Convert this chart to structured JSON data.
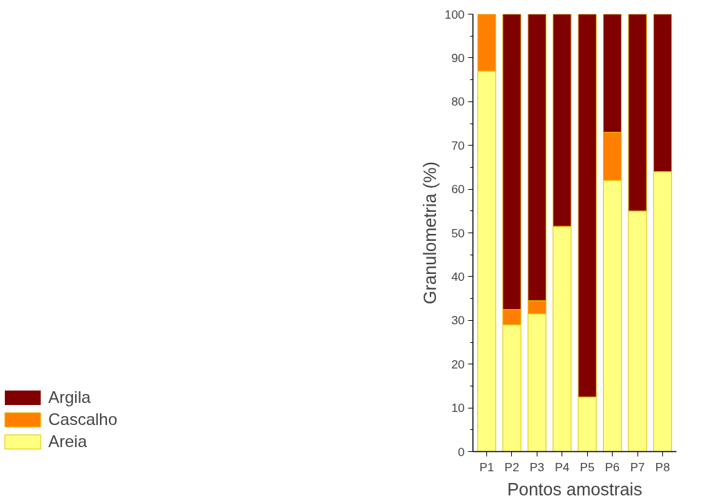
{
  "chart_data": {
    "type": "bar",
    "stacked": true,
    "xlabel": "Pontos amostrais",
    "ylabel": "Granulometria (%)",
    "categories": [
      "P1",
      "P2",
      "P3",
      "P4",
      "P5",
      "P6",
      "P7",
      "P8"
    ],
    "series": [
      {
        "name": "Areia",
        "color": "#ffff80",
        "values": [
          87,
          29,
          31.5,
          51.5,
          12.5,
          62,
          55,
          64
        ]
      },
      {
        "name": "Cascalho",
        "color": "#ff8000",
        "values": [
          13,
          3.5,
          3,
          0,
          0,
          11,
          0,
          0
        ]
      },
      {
        "name": "Argila",
        "color": "#800000",
        "values": [
          0,
          67.5,
          65.5,
          48.5,
          87.5,
          27,
          45,
          36
        ]
      }
    ],
    "ylim": [
      0,
      100
    ],
    "yticks": [
      0,
      10,
      20,
      30,
      40,
      50,
      60,
      70,
      80,
      90,
      100
    ],
    "grid": false,
    "legend": "bottom left"
  }
}
